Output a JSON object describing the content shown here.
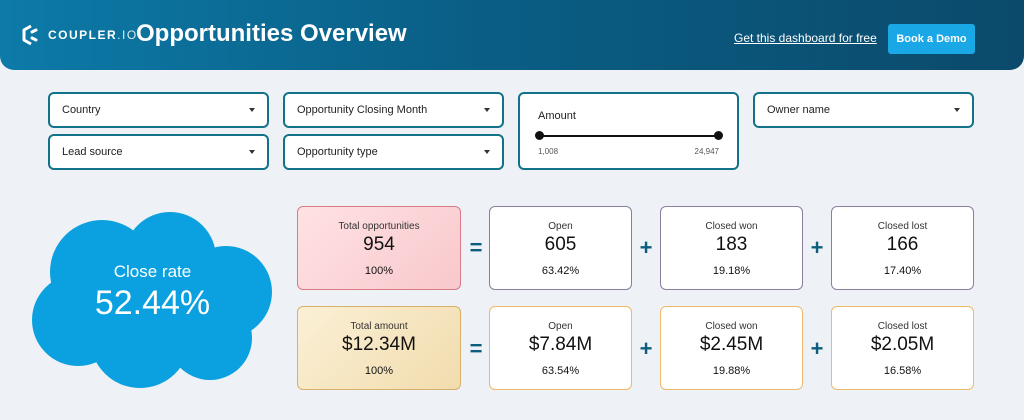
{
  "header": {
    "logo_text_bold": "COUPLER",
    "logo_text_light": ".IO",
    "title": "Opportunities Overview",
    "link_text": "Get this dashboard for free",
    "button_label": "Book a Demo"
  },
  "filters": {
    "country": "Country",
    "lead_source": "Lead source",
    "closing_month": "Opportunity Closing Month",
    "opportunity_type": "Opportunity type",
    "owner_name": "Owner name",
    "amount": {
      "label": "Amount",
      "min": "1,008",
      "max": "24,947"
    }
  },
  "close_rate": {
    "label": "Close rate",
    "value": "52.44%"
  },
  "operators": {
    "equals": "=",
    "plus": "+"
  },
  "opportunities": {
    "total": {
      "label": "Total opportunities",
      "value": "954",
      "pct": "100%"
    },
    "open": {
      "label": "Open",
      "value": "605",
      "pct": "63.42%"
    },
    "won": {
      "label": "Closed won",
      "value": "183",
      "pct": "19.18%"
    },
    "lost": {
      "label": "Closed lost",
      "value": "166",
      "pct": "17.40%"
    }
  },
  "amounts": {
    "total": {
      "label": "Total amount",
      "value": "$12.34M",
      "pct": "100%"
    },
    "open": {
      "label": "Open",
      "value": "$7.84M",
      "pct": "63.54%"
    },
    "won": {
      "label": "Closed won",
      "value": "$2.45M",
      "pct": "19.88%"
    },
    "lost": {
      "label": "Closed lost",
      "value": "$2.05M",
      "pct": "16.58%"
    }
  },
  "colors": {
    "accent": "#1aa7e6",
    "cloud": "#0ba0df",
    "header": "#0a5f86"
  }
}
